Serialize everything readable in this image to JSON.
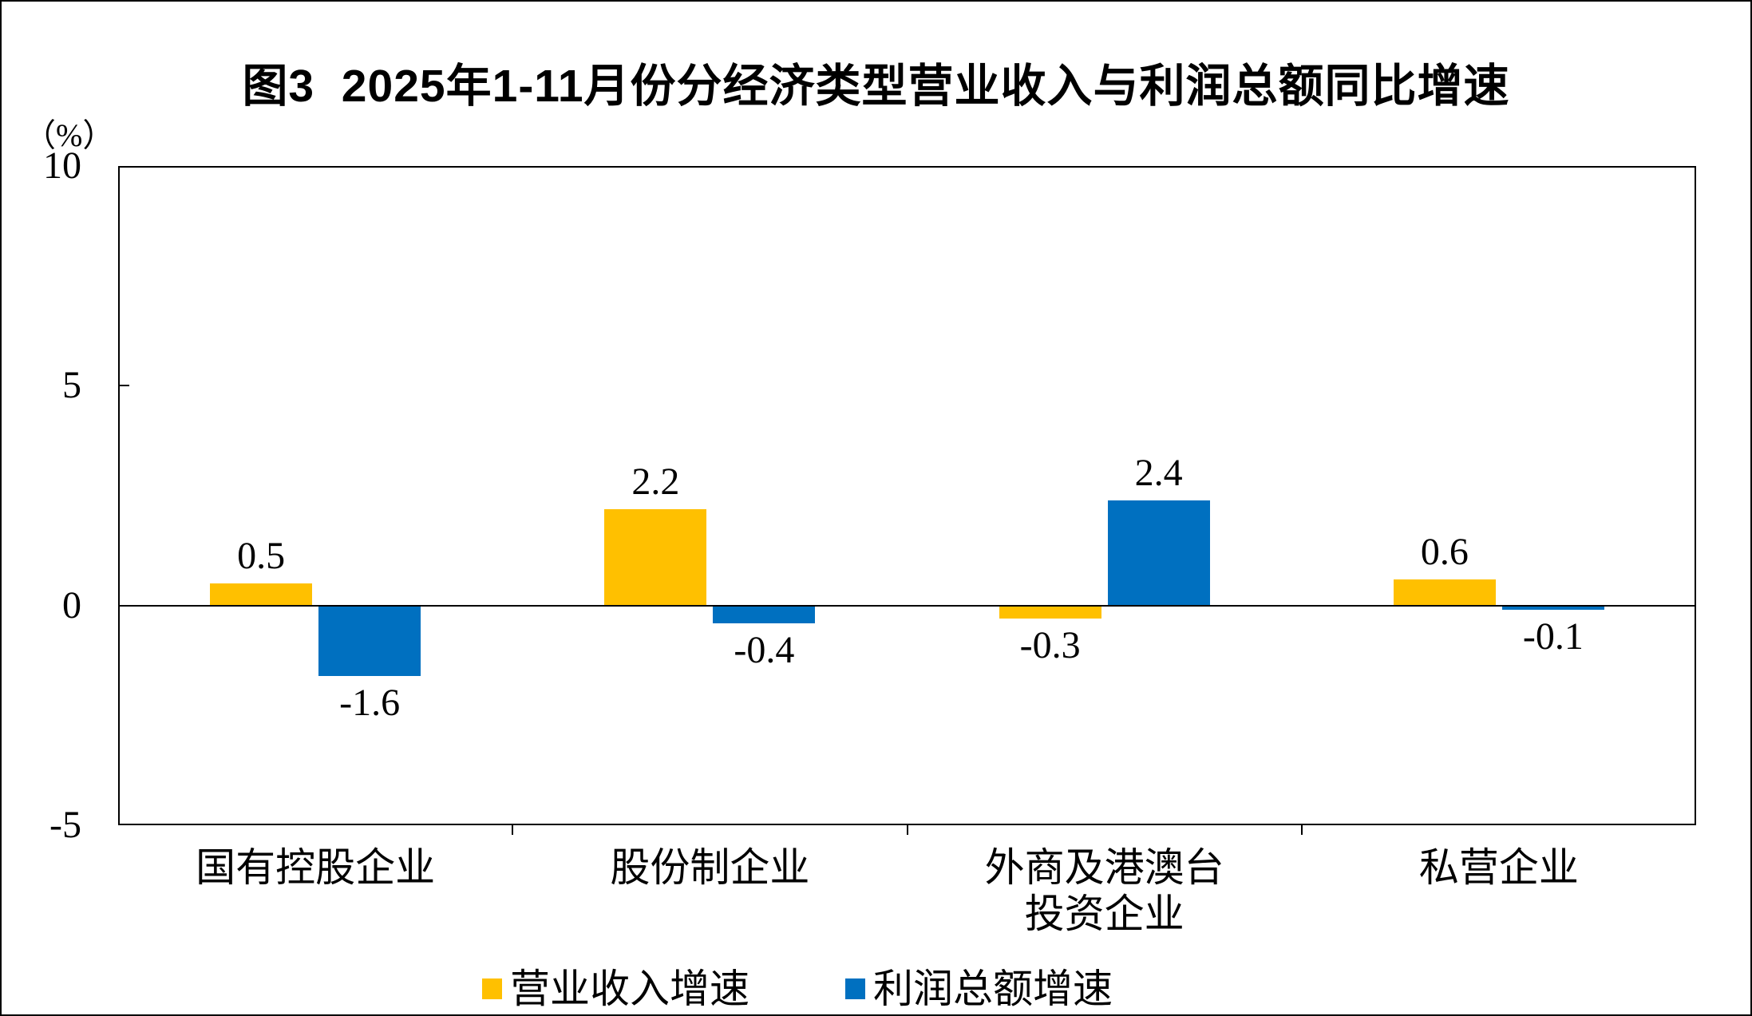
{
  "chart_data": {
    "type": "bar",
    "title": "图3  2025年1-11月份分经济类型营业收入与利润总额同比增速",
    "ylabel": "（%）",
    "xlabel": "",
    "ylim": [
      -5,
      10
    ],
    "yticks": [
      10,
      5,
      0,
      -5
    ],
    "grid": false,
    "legend_position": "bottom",
    "categories": [
      "国有控股企业",
      "股份制企业",
      "外商及港澳台\n投资企业",
      "私营企业"
    ],
    "series": [
      {
        "name": "营业收入增速",
        "color": "#FFC000",
        "values": [
          0.5,
          2.2,
          -0.3,
          0.6
        ]
      },
      {
        "name": "利润总额增速",
        "color": "#0070C0",
        "values": [
          -1.6,
          -0.4,
          2.4,
          -0.1
        ]
      }
    ]
  },
  "colors": {
    "revenue_series": "#FFC000",
    "profit_series": "#0070C0",
    "axis": "#000000",
    "background": "#FFFFFF",
    "text": "#000000"
  }
}
